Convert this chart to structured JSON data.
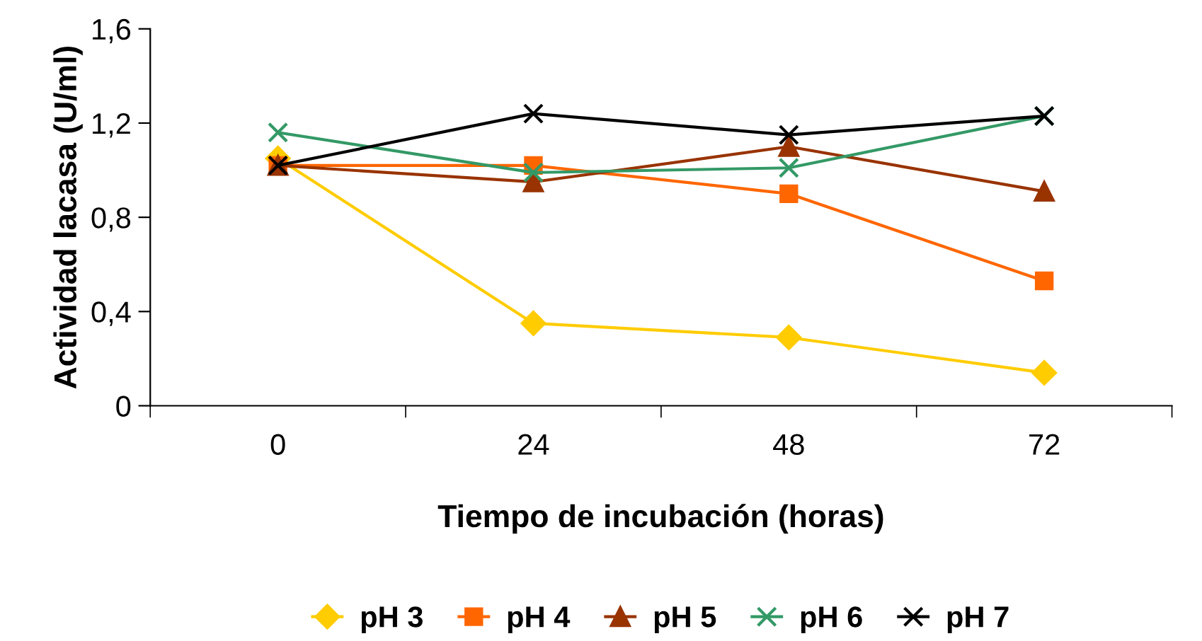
{
  "chart_data": {
    "type": "line",
    "xlabel": "Tiempo de incubación (horas)",
    "ylabel": "Actividad lacasa (U/ml)",
    "categories": [
      "0",
      "24",
      "48",
      "72"
    ],
    "series": [
      {
        "name": "pH 3",
        "color": "#ffcc00",
        "marker": "diamond",
        "values": [
          1.05,
          0.35,
          0.29,
          0.14
        ]
      },
      {
        "name": "pH 4",
        "color": "#ff6600",
        "marker": "square",
        "values": [
          1.02,
          1.02,
          0.9,
          0.53
        ]
      },
      {
        "name": "pH 5",
        "color": "#993300",
        "marker": "triangle",
        "values": [
          1.02,
          0.95,
          1.1,
          0.91
        ]
      },
      {
        "name": "pH 6",
        "color": "#339966",
        "marker": "cross",
        "values": [
          1.16,
          0.99,
          1.01,
          1.23
        ]
      },
      {
        "name": "pH 7",
        "color": "#000000",
        "marker": "cross",
        "values": [
          1.02,
          1.24,
          1.15,
          1.23
        ]
      }
    ],
    "ylim": [
      0,
      1.6
    ],
    "yticks": [
      0,
      {
        "value": 0.4,
        "label": "0,4"
      },
      {
        "value": 0.8,
        "label": "0,8"
      },
      {
        "value": 1.2,
        "label": "1,2"
      },
      {
        "value": 1.6,
        "label": "1,6"
      }
    ],
    "grid": false,
    "legend": "bottom",
    "line_style": "solid"
  }
}
